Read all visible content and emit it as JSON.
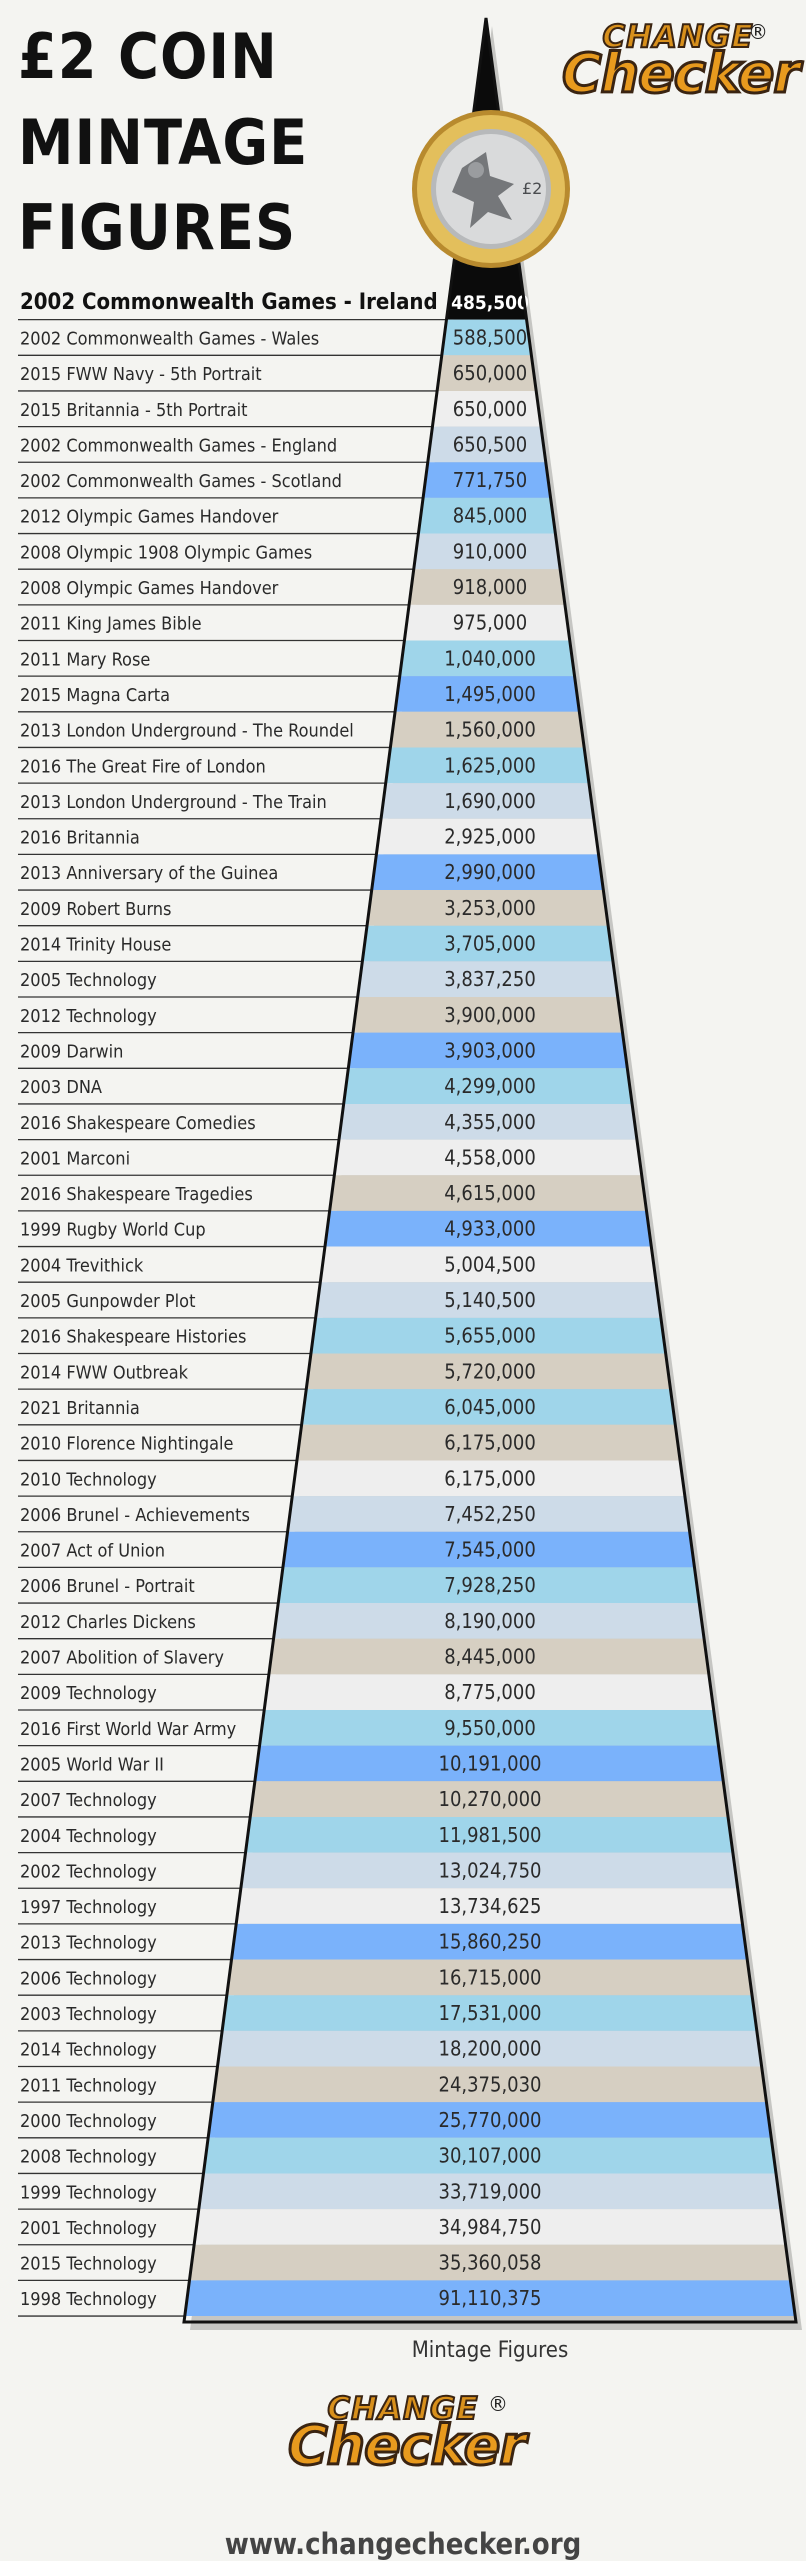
{
  "title_lines": [
    "£2 COIN",
    "MINTAGE",
    "FIGURES"
  ],
  "logo": {
    "line1": "CHANGE",
    "line2": "Checker",
    "registered": "®"
  },
  "footer_url": "www.changechecker.org",
  "colors": {
    "row_blue": "#7ab2fb",
    "row_light_blue": "#9fd5ea",
    "row_grey_blue": "#cddbe8",
    "row_beige": "#d6cfc2",
    "row_white": "#eeeeee",
    "triangle_tip": "#0b0b0b",
    "text": "#2a2a2a"
  },
  "chart_data": {
    "type": "bar",
    "title": "£2 COIN MINTAGE FIGURES",
    "xlabel": "Mintage Figures",
    "ylabel": "",
    "highlight_first": true,
    "categories": [
      "2002 Commonwealth Games - Ireland",
      "2002 Commonwealth Games - Wales",
      "2015 FWW Navy - 5th Portrait",
      "2015 Britannia - 5th Portrait",
      "2002 Commonwealth Games - England",
      "2002 Commonwealth Games - Scotland",
      "2012 Olympic Games Handover",
      "2008 Olympic 1908 Olympic Games",
      "2008 Olympic Games Handover",
      "2011 King James Bible",
      "2011 Mary Rose",
      "2015 Magna Carta",
      "2013 London Underground - The Roundel",
      "2016 The Great Fire of London",
      "2013 London Underground - The Train",
      "2016 Britannia",
      "2013 Anniversary of the Guinea",
      "2009 Robert Burns",
      "2014 Trinity House",
      "2005 Technology",
      "2012 Technology",
      "2009 Darwin",
      "2003 DNA",
      "2016 Shakespeare Comedies",
      "2001 Marconi",
      "2016 Shakespeare Tragedies",
      "1999 Rugby World Cup",
      "2004 Trevithick",
      "2005 Gunpowder Plot",
      "2016 Shakespeare Histories",
      "2014 FWW Outbreak",
      "2021 Britannia",
      "2010 Florence Nightingale",
      "2010 Technology",
      "2006 Brunel - Achievements",
      "2007 Act of Union",
      "2006 Brunel - Portrait",
      "2012 Charles Dickens",
      "2007 Abolition of Slavery",
      "2009 Technology",
      "2016 First World War Army",
      "2005 World War II",
      "2007 Technology",
      "2004 Technology",
      "2002 Technology",
      "1997 Technology",
      "2013 Technology",
      "2006 Technology",
      "2003 Technology",
      "2014 Technology",
      "2011 Technology",
      "2000 Technology",
      "2008 Technology",
      "1999 Technology",
      "2001 Technology",
      "2015 Technology",
      "1998 Technology"
    ],
    "values": [
      485500,
      588500,
      650000,
      650000,
      650500,
      771750,
      845000,
      910000,
      918000,
      975000,
      1040000,
      1495000,
      1560000,
      1625000,
      1690000,
      2925000,
      2990000,
      3253000,
      3705000,
      3837250,
      3900000,
      3903000,
      4299000,
      4355000,
      4558000,
      4615000,
      4933000,
      5004500,
      5140500,
      5655000,
      5720000,
      6045000,
      6175000,
      6175000,
      7452250,
      7545000,
      7928250,
      8190000,
      8445000,
      8775000,
      9550000,
      10191000,
      10270000,
      11981500,
      13024750,
      13734625,
      15860250,
      16715000,
      17531000,
      18200000,
      24375030,
      25770000,
      30107000,
      33719000,
      34984750,
      35360058,
      91110375
    ],
    "value_labels": [
      "485,500",
      "588,500",
      "650,000",
      "650,000",
      "650,500",
      "771,750",
      "845,000",
      "910,000",
      "918,000",
      "975,000",
      "1,040,000",
      "1,495,000",
      "1,560,000",
      "1,625,000",
      "1,690,000",
      "2,925,000",
      "2,990,000",
      "3,253,000",
      "3,705,000",
      "3,837,250",
      "3,900,000",
      "3,903,000",
      "4,299,000",
      "4,355,000",
      "4,558,000",
      "4,615,000",
      "4,933,000",
      "5,004,500",
      "5,140,500",
      "5,655,000",
      "5,720,000",
      "6,045,000",
      "6,175,000",
      "6,175,000",
      "7,452,250",
      "7,545,000",
      "7,928,250",
      "8,190,000",
      "8,445,000",
      "8,775,000",
      "9,550,000",
      "10,191,000",
      "10,270,000",
      "11,981,500",
      "13,024,750",
      "13,734,625",
      "15,860,250",
      "16,715,000",
      "17,531,000",
      "18,200,000",
      "24,375,030",
      "25,770,000",
      "30,107,000",
      "33,719,000",
      "34,984,750",
      "35,360,058",
      "91,110,375"
    ],
    "row_color_keys": [
      "tip",
      "row_light_blue",
      "row_beige",
      "row_white",
      "row_grey_blue",
      "row_blue",
      "row_light_blue",
      "row_grey_blue",
      "row_beige",
      "row_white",
      "row_light_blue",
      "row_blue",
      "row_beige",
      "row_light_blue",
      "row_grey_blue",
      "row_white",
      "row_blue",
      "row_beige",
      "row_light_blue",
      "row_grey_blue",
      "row_beige",
      "row_blue",
      "row_light_blue",
      "row_grey_blue",
      "row_white",
      "row_beige",
      "row_blue",
      "row_white",
      "row_grey_blue",
      "row_light_blue",
      "row_beige",
      "row_light_blue",
      "row_beige",
      "row_white",
      "row_grey_blue",
      "row_blue",
      "row_light_blue",
      "row_grey_blue",
      "row_beige",
      "row_white",
      "row_light_blue",
      "row_blue",
      "row_beige",
      "row_light_blue",
      "row_grey_blue",
      "row_white",
      "row_blue",
      "row_beige",
      "row_light_blue",
      "row_grey_blue",
      "row_beige",
      "row_blue",
      "row_light_blue",
      "row_grey_blue",
      "row_white",
      "row_beige",
      "row_blue"
    ]
  }
}
